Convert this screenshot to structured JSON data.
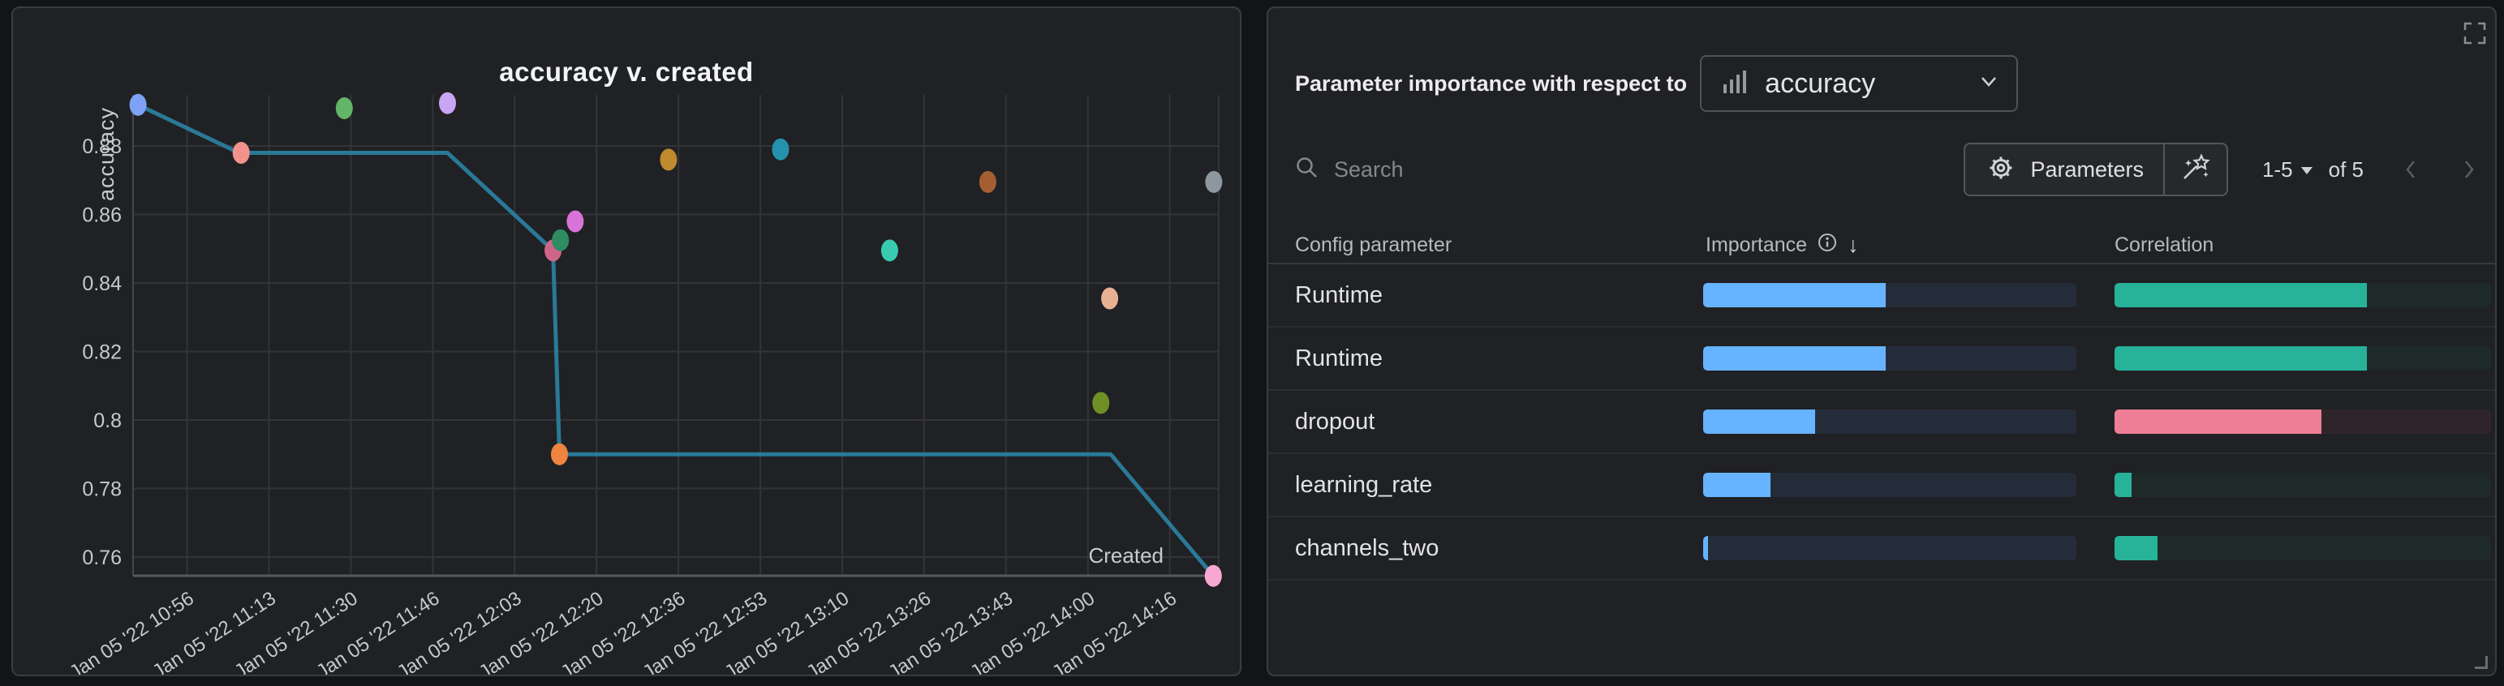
{
  "left_panel": {
    "title": "accuracy v. created",
    "y_axis_title": "accuracy",
    "x_axis_title": "Created"
  },
  "chart_data": {
    "type": "scatter",
    "title": "accuracy v. created",
    "xlabel": "Created",
    "ylabel": "accuracy",
    "grid": true,
    "x_axis": {
      "tick_labels": [
        "Jan 05 '22 10:56",
        "Jan 05 '22 11:13",
        "Jan 05 '22 11:30",
        "Jan 05 '22 11:46",
        "Jan 05 '22 12:03",
        "Jan 05 '22 12:20",
        "Jan 05 '22 12:36",
        "Jan 05 '22 12:53",
        "Jan 05 '22 13:10",
        "Jan 05 '22 13:26",
        "Jan 05 '22 13:43",
        "Jan 05 '22 14:00",
        "Jan 05 '22 14:16"
      ],
      "tick_interval_minutes": 16.67,
      "range_minutes": [
        -11,
        210
      ]
    },
    "y_axis": {
      "tick_values": [
        0.88,
        0.86,
        0.84,
        0.82,
        0.8,
        0.78,
        0.76
      ],
      "tick_labels": [
        "0.88",
        "0.86",
        "0.84",
        "0.82",
        "0.8",
        "0.78",
        "0.76"
      ],
      "range": [
        0.7546,
        0.8949
      ]
    },
    "points": [
      {
        "created_minutes": -10,
        "accuracy": 0.892,
        "color": "#7da1f4"
      },
      {
        "created_minutes": 11,
        "accuracy": 0.878,
        "color": "#f2928c"
      },
      {
        "created_minutes": 32,
        "accuracy": 0.891,
        "color": "#63b567"
      },
      {
        "created_minutes": 53,
        "accuracy": 0.8925,
        "color": "#c9a5f3"
      },
      {
        "created_minutes": 74.5,
        "accuracy": 0.8495,
        "color": "#cf6689"
      },
      {
        "created_minutes": 76,
        "accuracy": 0.8525,
        "color": "#2e8b62"
      },
      {
        "created_minutes": 79,
        "accuracy": 0.858,
        "color": "#d873d8"
      },
      {
        "created_minutes": 75.8,
        "accuracy": 0.79,
        "color": "#ee8440"
      },
      {
        "created_minutes": 98,
        "accuracy": 0.876,
        "color": "#c08a2e"
      },
      {
        "created_minutes": 120.8,
        "accuracy": 0.879,
        "color": "#2592ad"
      },
      {
        "created_minutes": 143,
        "accuracy": 0.8495,
        "color": "#38cbb0"
      },
      {
        "created_minutes": 163,
        "accuracy": 0.8695,
        "color": "#a35f32"
      },
      {
        "created_minutes": 186,
        "accuracy": 0.805,
        "color": "#6f9024"
      },
      {
        "created_minutes": 187.8,
        "accuracy": 0.8355,
        "color": "#eab093"
      },
      {
        "created_minutes": 209,
        "accuracy": 0.8695,
        "color": "#8d979e"
      },
      {
        "created_minutes": 208.9,
        "accuracy": 0.7545,
        "color": "#f6a8d2"
      }
    ],
    "trend_line": {
      "color": "#2a7e9e",
      "points": [
        [
          -10,
          0.892
        ],
        [
          10.6,
          0.878
        ],
        [
          53,
          0.878
        ],
        [
          74.5,
          0.8495
        ],
        [
          75.8,
          0.79
        ],
        [
          188,
          0.79
        ],
        [
          208.9,
          0.7545
        ]
      ]
    }
  },
  "right_panel": {
    "header_label": "Parameter importance with respect to",
    "metric_dropdown": {
      "value": "accuracy",
      "icon": "bar-chart-icon"
    },
    "search": {
      "placeholder": "Search",
      "icon": "search-icon"
    },
    "parameters_button": {
      "label": "Parameters",
      "icon": "gear-icon"
    },
    "magic_button": {
      "icon": "magic-wand-icon"
    },
    "pagination": {
      "range_label": "1-5",
      "of_label": "of 5"
    },
    "table": {
      "columns": [
        "Config parameter",
        "Importance",
        "Correlation"
      ],
      "sort": {
        "column": "Importance",
        "direction": "desc"
      },
      "rows": [
        {
          "parameter": "Runtime",
          "importance_pct": 49,
          "correlation_pct": 67,
          "correlation_color": "#26b39a"
        },
        {
          "parameter": "Runtime",
          "importance_pct": 49,
          "correlation_pct": 67,
          "correlation_color": "#26b39a"
        },
        {
          "parameter": "dropout",
          "importance_pct": 30,
          "correlation_pct": 55,
          "correlation_color": "#ee7e95"
        },
        {
          "parameter": "learning_rate",
          "importance_pct": 18,
          "correlation_pct": 4.5,
          "correlation_color": "#26b39a"
        },
        {
          "parameter": "channels_two",
          "importance_pct": 1.2,
          "correlation_pct": 11.5,
          "correlation_color": "#26b39a"
        }
      ]
    }
  },
  "colors": {
    "page_bg": "#131416",
    "panel_bg": "#202124",
    "panel_border": "#3a3c3f",
    "grid_line": "#323437",
    "axis_line": "#56585b",
    "tick_text": "#c6c8cc",
    "line": "#2a7e9e",
    "importance_fill": "#66b3ff",
    "importance_track": "#252c39",
    "correlation_green": "#26b39a",
    "correlation_green_track": "#1e2a27",
    "correlation_pink": "#ee7e95",
    "correlation_pink_track": "#2f2429"
  }
}
